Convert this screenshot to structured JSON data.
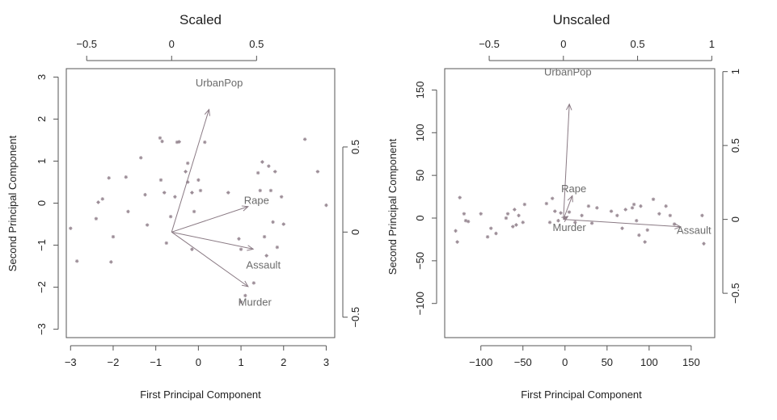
{
  "colors": {
    "frame": "#555555",
    "text": "#222222",
    "point": "#9a8b95",
    "arrow": "#8a7a84",
    "vlabel": "#6b6b6b"
  },
  "chart_data": [
    {
      "type": "scatter",
      "title": "Scaled",
      "xlabel": "First Principal Component",
      "ylabel": "Second Principal Component",
      "xlim": [
        -3.1,
        3.2
      ],
      "ylim": [
        -3.2,
        3.2
      ],
      "xticks": [
        -3,
        -2,
        -1,
        0,
        1,
        2,
        3
      ],
      "yticks": [
        -3,
        -2,
        -1,
        0,
        1,
        2,
        3
      ],
      "top_axis": {
        "lim": [
          -0.62,
          0.96
        ],
        "ticks": [
          -0.5,
          0.0,
          0.5
        ]
      },
      "right_axis": {
        "lim": [
          -0.62,
          0.96
        ],
        "ticks": [
          -0.5,
          0.0,
          0.5
        ]
      },
      "points": [
        [
          -3.0,
          -0.6
        ],
        [
          -2.85,
          -1.38
        ],
        [
          -2.4,
          -0.37
        ],
        [
          -2.35,
          0.02
        ],
        [
          -2.25,
          0.1
        ],
        [
          -2.1,
          0.6
        ],
        [
          -2.0,
          -0.8
        ],
        [
          -2.05,
          -1.4
        ],
        [
          -1.7,
          0.62
        ],
        [
          -1.65,
          -0.2
        ],
        [
          -1.35,
          1.08
        ],
        [
          -1.25,
          0.2
        ],
        [
          -1.2,
          -0.52
        ],
        [
          -0.9,
          1.55
        ],
        [
          -0.85,
          1.47
        ],
        [
          -0.88,
          0.55
        ],
        [
          -0.8,
          0.25
        ],
        [
          -0.75,
          -0.95
        ],
        [
          -0.65,
          -0.32
        ],
        [
          -0.55,
          0.15
        ],
        [
          -0.5,
          1.45
        ],
        [
          -0.45,
          1.46
        ],
        [
          -0.3,
          0.75
        ],
        [
          -0.25,
          0.95
        ],
        [
          -0.25,
          0.5
        ],
        [
          -0.15,
          0.25
        ],
        [
          -0.1,
          -0.2
        ],
        [
          -0.15,
          -1.1
        ],
        [
          0.0,
          0.55
        ],
        [
          0.05,
          0.3
        ],
        [
          0.15,
          1.45
        ],
        [
          0.7,
          0.25
        ],
        [
          0.95,
          -0.85
        ],
        [
          1.0,
          -1.1
        ],
        [
          1.0,
          -2.35
        ],
        [
          1.1,
          -2.2
        ],
        [
          1.3,
          -1.9
        ],
        [
          1.4,
          0.72
        ],
        [
          1.45,
          0.3
        ],
        [
          1.5,
          0.98
        ],
        [
          1.55,
          -0.8
        ],
        [
          1.6,
          -1.25
        ],
        [
          1.65,
          0.88
        ],
        [
          1.7,
          0.3
        ],
        [
          1.75,
          -0.45
        ],
        [
          1.8,
          0.75
        ],
        [
          1.85,
          -1.05
        ],
        [
          1.95,
          0.15
        ],
        [
          2.0,
          -0.5
        ],
        [
          2.5,
          1.52
        ],
        [
          2.8,
          0.75
        ],
        [
          3.0,
          -0.05
        ]
      ],
      "loadings": [
        {
          "name": "UrbanPop",
          "x": 0.22,
          "y": 0.72
        },
        {
          "name": "Rape",
          "x": 0.45,
          "y": 0.15
        },
        {
          "name": "Assault",
          "x": 0.48,
          "y": -0.1
        },
        {
          "name": "Murder",
          "x": 0.45,
          "y": -0.32
        }
      ],
      "loading_labels": [
        {
          "name": "UrbanPop",
          "x": 0.28,
          "y": 0.88
        },
        {
          "name": "Rape",
          "x": 0.5,
          "y": 0.19
        },
        {
          "name": "Assault",
          "x": 0.54,
          "y": -0.19
        },
        {
          "name": "Murder",
          "x": 0.49,
          "y": -0.41
        }
      ]
    },
    {
      "type": "scatter",
      "title": "Unscaled",
      "xlabel": "First Principal Component",
      "ylabel": "Second Principal Component",
      "xlim": [
        -143,
        178
      ],
      "ylim": [
        -140,
        175
      ],
      "xticks": [
        -100,
        -50,
        0,
        50,
        100,
        150
      ],
      "yticks": [
        -100,
        -50,
        0,
        50,
        100,
        150
      ],
      "top_axis": {
        "lim": [
          -0.8,
          1.02
        ],
        "ticks": [
          -0.5,
          0.0,
          0.5,
          1.0
        ]
      },
      "right_axis": {
        "lim": [
          -0.8,
          1.02
        ],
        "ticks": [
          -0.5,
          0.0,
          0.5,
          1.0
        ]
      },
      "points": [
        [
          -130,
          -15
        ],
        [
          -128,
          -28
        ],
        [
          -125,
          24
        ],
        [
          -120,
          5
        ],
        [
          -118,
          -3
        ],
        [
          -115,
          -4
        ],
        [
          -100,
          5
        ],
        [
          -92,
          -22
        ],
        [
          -88,
          -12
        ],
        [
          -82,
          -18
        ],
        [
          -70,
          0
        ],
        [
          -68,
          5
        ],
        [
          -62,
          -10
        ],
        [
          -60,
          10
        ],
        [
          -58,
          -8
        ],
        [
          -55,
          3
        ],
        [
          -50,
          -5
        ],
        [
          -48,
          16
        ],
        [
          -22,
          17
        ],
        [
          -18,
          -5
        ],
        [
          -15,
          23
        ],
        [
          -12,
          8
        ],
        [
          -8,
          -3
        ],
        [
          -5,
          6
        ],
        [
          0,
          0
        ],
        [
          5,
          7
        ],
        [
          12,
          -5
        ],
        [
          20,
          3
        ],
        [
          28,
          14
        ],
        [
          32,
          -6
        ],
        [
          38,
          12
        ],
        [
          55,
          8
        ],
        [
          62,
          3
        ],
        [
          68,
          -12
        ],
        [
          72,
          10
        ],
        [
          80,
          12
        ],
        [
          82,
          16
        ],
        [
          85,
          -3
        ],
        [
          88,
          -20
        ],
        [
          90,
          14
        ],
        [
          95,
          -28
        ],
        [
          98,
          -14
        ],
        [
          105,
          22
        ],
        [
          112,
          5
        ],
        [
          120,
          14
        ],
        [
          125,
          3
        ],
        [
          130,
          -7
        ],
        [
          163,
          3
        ],
        [
          165,
          -30
        ]
      ],
      "loadings": [
        {
          "name": "UrbanPop",
          "x": 0.04,
          "y": 0.78
        },
        {
          "name": "Rape",
          "x": 0.06,
          "y": 0.16
        },
        {
          "name": "Assault",
          "x": 0.79,
          "y": -0.05
        },
        {
          "name": "Murder",
          "x": 0.03,
          "y": 0.02
        }
      ],
      "loading_labels": [
        {
          "name": "UrbanPop",
          "x": 0.03,
          "y": 1.0
        },
        {
          "name": "Rape",
          "x": 0.07,
          "y": 0.21
        },
        {
          "name": "Assault",
          "x": 0.88,
          "y": -0.07
        },
        {
          "name": "Murder",
          "x": 0.04,
          "y": -0.05
        }
      ]
    }
  ]
}
